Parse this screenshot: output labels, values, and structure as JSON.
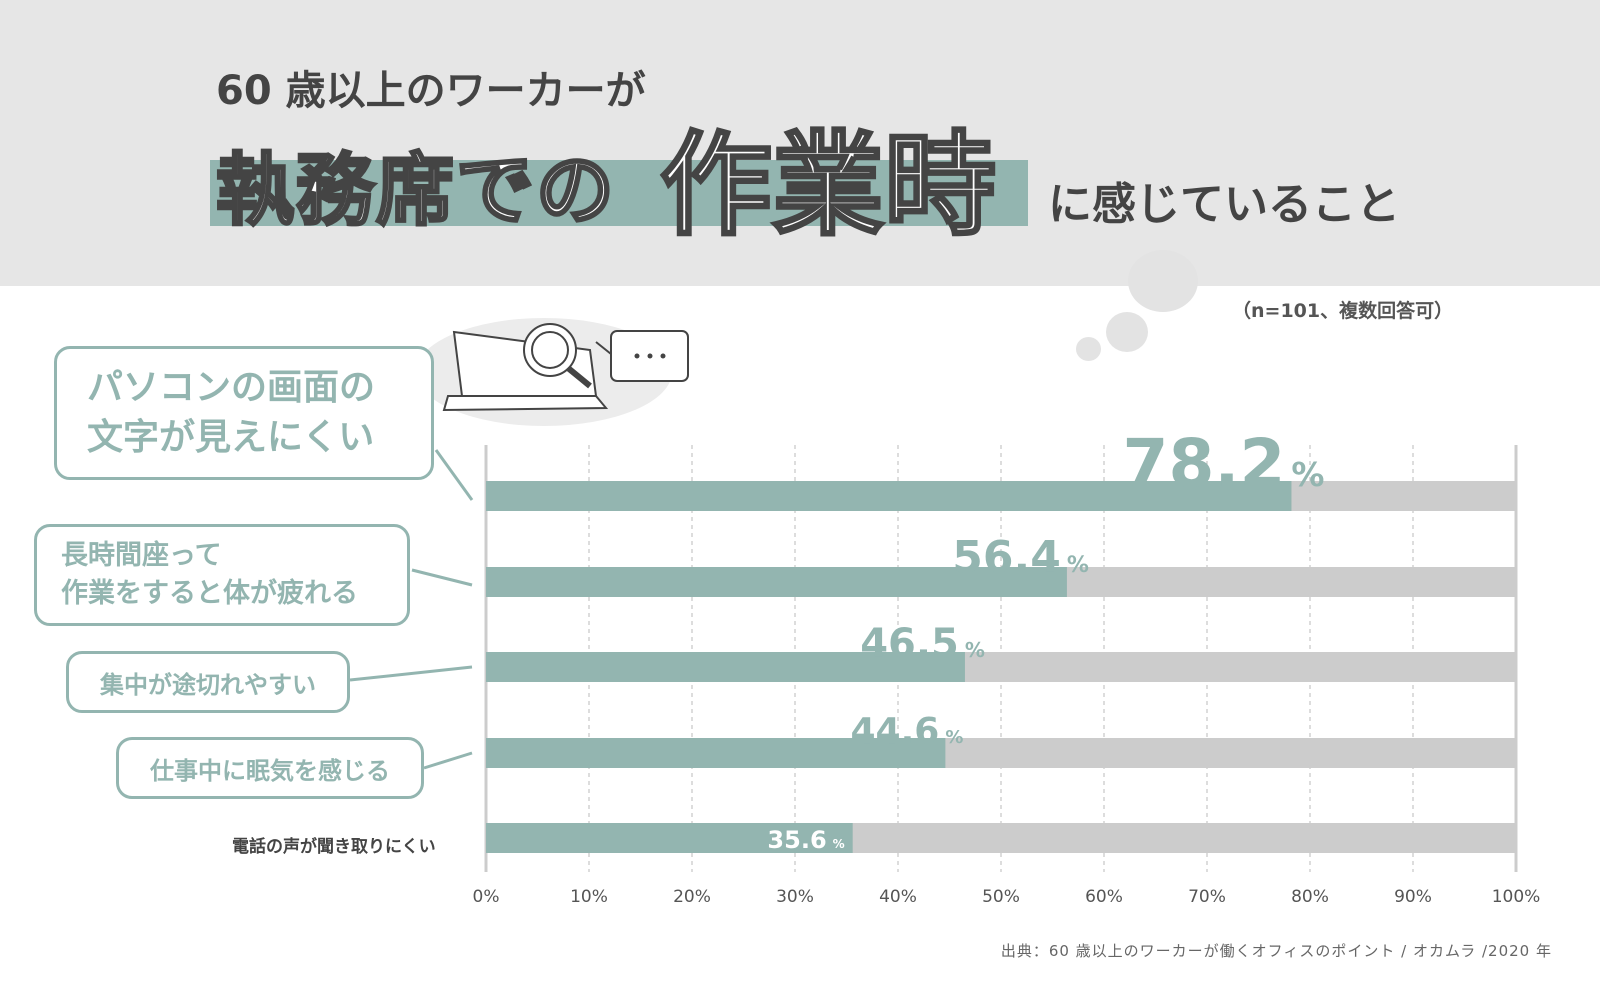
{
  "title": {
    "line1": "60 歳以上のワーカーが",
    "highlight1": "執務席での",
    "highlight2": "作業時",
    "tail": "に感じていること"
  },
  "note": "（n=101、複数回答可）",
  "source": "出典：60 歳以上のワーカーが働くオフィスのポイント / オカムラ /2020 年",
  "colors": {
    "bar": "#93b5b0",
    "track": "#cccccc",
    "header_bg": "#e6e6e6",
    "text": "#444444"
  },
  "chart_data": {
    "type": "bar",
    "orientation": "horizontal",
    "categories": [
      "パソコンの画面の文字が見えにくい",
      "長時間座って作業をすると体が疲れる",
      "集中が途切れやすい",
      "仕事中に眠気を感じる",
      "電話の声が聞き取りにくい"
    ],
    "category_lines": [
      [
        "パソコンの画面の",
        "文字が見えにくい"
      ],
      [
        "長時間座って",
        "作業をすると体が疲れる"
      ],
      [
        "集中が途切れやすい"
      ],
      [
        "仕事中に眠気を感じる"
      ],
      [
        "電話の声が聞き取りにくい"
      ]
    ],
    "values": [
      78.2,
      56.4,
      46.5,
      44.6,
      35.6
    ],
    "value_labels": [
      "78.2",
      "56.4",
      "46.5",
      "44.6",
      "35.6"
    ],
    "unit": "%",
    "xlim": [
      0,
      100
    ],
    "xticks": [
      "0%",
      "10%",
      "20%",
      "30%",
      "40%",
      "50%",
      "60%",
      "70%",
      "80%",
      "90%",
      "100%"
    ],
    "grid": true
  }
}
